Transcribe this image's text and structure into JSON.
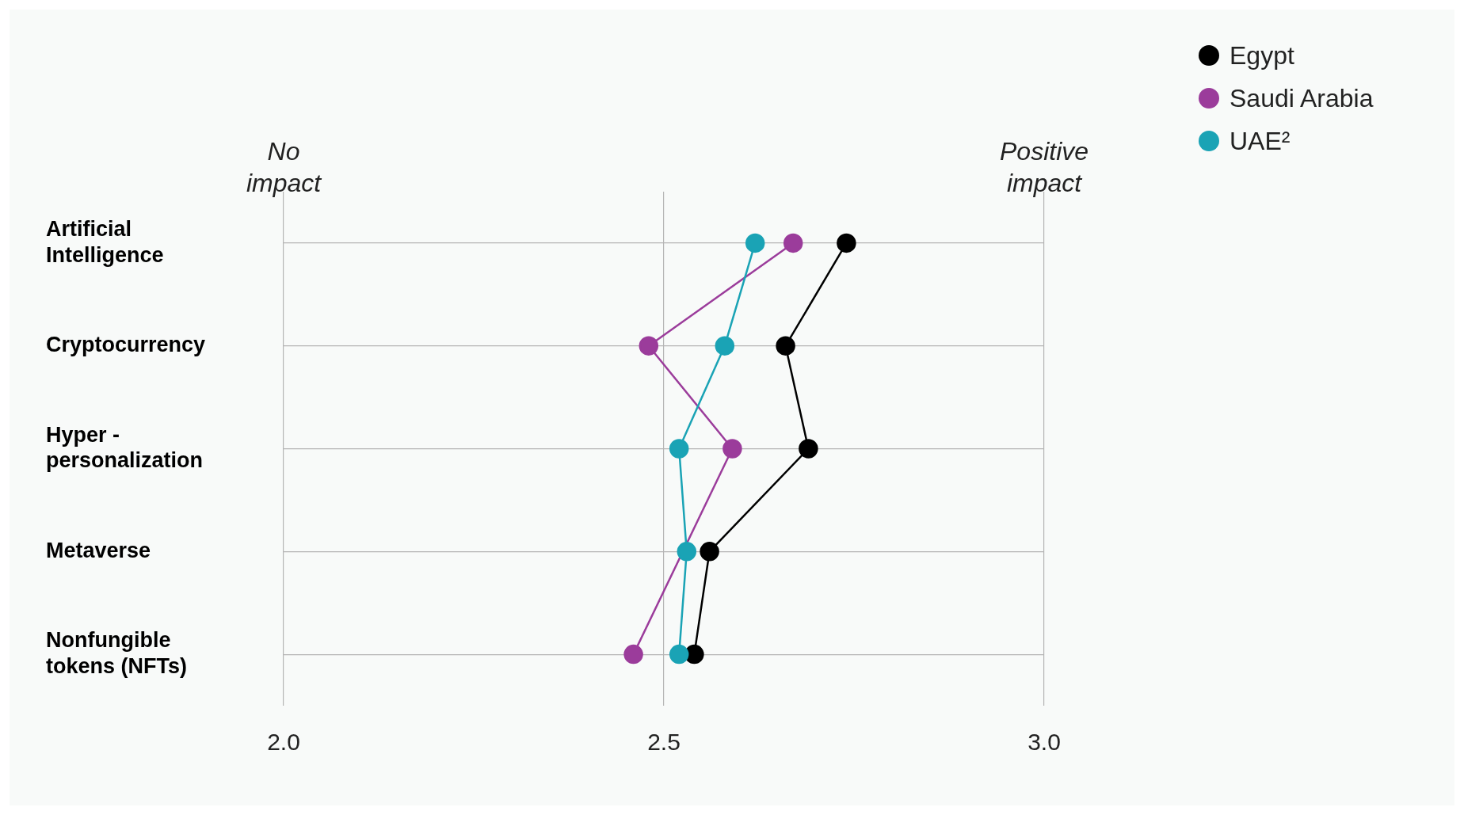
{
  "chart_data": {
    "type": "line",
    "orientation": "horizontal",
    "categories": [
      "Artificial Intelligence",
      "Cryptocurrency",
      "Hyper - personalization",
      "Metaverse",
      "Nonfungible tokens (NFTs)"
    ],
    "series": [
      {
        "name": "Egypt",
        "color": "#000000",
        "values": [
          2.74,
          2.66,
          2.69,
          2.56,
          2.54
        ]
      },
      {
        "name": "Saudi Arabia",
        "color": "#9b3c9b",
        "values": [
          2.67,
          2.48,
          2.59,
          null,
          2.46
        ]
      },
      {
        "name": "UAE²",
        "color": "#1aa3b5",
        "values": [
          2.62,
          2.58,
          2.52,
          2.53,
          2.52
        ]
      }
    ],
    "xlim": [
      2.0,
      3.0
    ],
    "xticks": [
      {
        "value": 2,
        "label": "2.0"
      },
      {
        "value": 2.5,
        "label": "2.5"
      },
      {
        "value": 3,
        "label": "3.0"
      }
    ],
    "annotations": [
      "No impact",
      "Positive impact"
    ],
    "grid": true,
    "legend": "top right",
    "marker": "circle",
    "line_style": "solid"
  }
}
